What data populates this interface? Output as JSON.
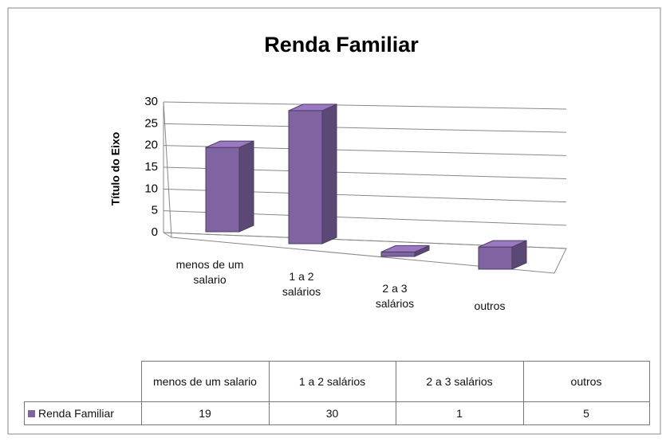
{
  "chart_data": {
    "type": "bar3d",
    "title": "Renda Familiar",
    "y_label": "Título do Eixo",
    "categories": [
      "menos de um salario",
      "1 a 2 salários",
      "2 a 3 salários",
      "outros"
    ],
    "series": [
      {
        "name": "Renda Familiar",
        "color": "#8064a2",
        "values": [
          19,
          30,
          1,
          5
        ]
      }
    ],
    "ylim": [
      0,
      30
    ],
    "yticks": [
      0,
      5,
      10,
      15,
      20,
      25,
      30
    ],
    "grid": true,
    "data_table": true
  }
}
